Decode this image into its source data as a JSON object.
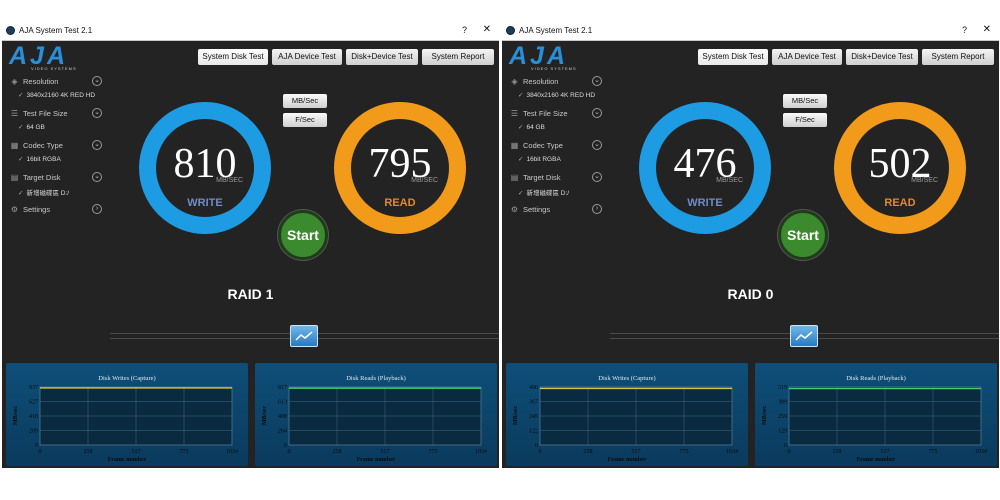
{
  "windows": [
    {
      "title": "AJA System Test 2.1",
      "help": "?",
      "close": "✕",
      "logo": {
        "text": "AJA",
        "subtitle": "VIDEO SYSTEMS"
      },
      "tabs": [
        "System Disk Test",
        "AJA Device Test",
        "Disk+Device Test",
        "System Report"
      ],
      "sidebar": [
        {
          "label": "Resolution",
          "value": "3840x2160 4K RED HD",
          "icon": "resolution-icon",
          "button": "chevron-down"
        },
        {
          "label": "Test File Size",
          "value": "64 GB",
          "icon": "file-size-icon",
          "button": "chevron-down"
        },
        {
          "label": "Codec Type",
          "value": "16bit RGBA",
          "icon": "codec-icon",
          "button": "chevron-down"
        },
        {
          "label": "Target Disk",
          "value": "新增磁碟區 D:/",
          "icon": "disk-icon",
          "button": "chevron-down"
        },
        {
          "label": "Settings",
          "value": "",
          "icon": "gear-icon",
          "button": "chevron-right"
        }
      ],
      "units": [
        "MB/Sec",
        "F/Sec"
      ],
      "write": {
        "value": "810",
        "unit": "MB/SEC",
        "label": "WRITE"
      },
      "read": {
        "value": "795",
        "unit": "MB/SEC",
        "label": "READ"
      },
      "start_label": "Start",
      "raid_label": "RAID 1",
      "charts": [
        {
          "title": "Disk Writes (Capture)",
          "xlabel": "Frame number",
          "ylabel": "MB/sec",
          "x_ticks": [
            "0",
            "258",
            "517",
            "775",
            "1034"
          ],
          "y_ticks": [
            "837",
            "627",
            "418",
            "209",
            "0"
          ],
          "ylim": [
            0,
            837
          ],
          "xlim": [
            0,
            1034
          ],
          "level": 823,
          "line_color": "#d8c44a"
        },
        {
          "title": "Disk Reads (Playback)",
          "xlabel": "Frame number",
          "ylabel": "MB/sec",
          "x_ticks": [
            "0",
            "258",
            "517",
            "775",
            "1034"
          ],
          "y_ticks": [
            "817",
            "613",
            "408",
            "204",
            "0"
          ],
          "ylim": [
            0,
            817
          ],
          "xlim": [
            0,
            1034
          ],
          "level": 800,
          "line_color": "#3fcf6a"
        }
      ]
    },
    {
      "title": "AJA System Test 2.1",
      "help": "?",
      "close": "✕",
      "logo": {
        "text": "AJA",
        "subtitle": "VIDEO SYSTEMS"
      },
      "tabs": [
        "System Disk Test",
        "AJA Device Test",
        "Disk+Device Test",
        "System Report"
      ],
      "sidebar": [
        {
          "label": "Resolution",
          "value": "3840x2160 4K RED HD",
          "icon": "resolution-icon",
          "button": "chevron-down"
        },
        {
          "label": "Test File Size",
          "value": "64 GB",
          "icon": "file-size-icon",
          "button": "chevron-down"
        },
        {
          "label": "Codec Type",
          "value": "16bit RGBA",
          "icon": "codec-icon",
          "button": "chevron-down"
        },
        {
          "label": "Target Disk",
          "value": "新增磁碟區 D:/",
          "icon": "disk-icon",
          "button": "chevron-down"
        },
        {
          "label": "Settings",
          "value": "",
          "icon": "gear-icon",
          "button": "chevron-right"
        }
      ],
      "units": [
        "MB/Sec",
        "F/Sec"
      ],
      "write": {
        "value": "476",
        "unit": "MB/SEC",
        "label": "WRITE"
      },
      "read": {
        "value": "502",
        "unit": "MB/SEC",
        "label": "READ"
      },
      "start_label": "Start",
      "raid_label": "RAID 0",
      "charts": [
        {
          "title": "Disk Writes (Capture)",
          "xlabel": "Frame number",
          "ylabel": "MB/sec",
          "x_ticks": [
            "0",
            "258",
            "517",
            "775",
            "1034"
          ],
          "y_ticks": [
            "490",
            "367",
            "245",
            "122",
            "0"
          ],
          "ylim": [
            0,
            490
          ],
          "xlim": [
            0,
            1034
          ],
          "level": 478,
          "line_color": "#d8c44a"
        },
        {
          "title": "Disk Reads (Playback)",
          "xlabel": "Frame number",
          "ylabel": "MB/sec",
          "x_ticks": [
            "0",
            "258",
            "517",
            "775",
            "1034"
          ],
          "y_ticks": [
            "519",
            "389",
            "259",
            "129",
            "0"
          ],
          "ylim": [
            0,
            519
          ],
          "xlim": [
            0,
            1034
          ],
          "level": 505,
          "line_color": "#3fcf6a"
        }
      ]
    }
  ],
  "colors": {
    "write_ring": "#1d9be3",
    "read_ring": "#f29a1a",
    "start_button": "#3b8a2e",
    "panel_bg": "#0e4f79",
    "plot_bg": "#0a2a40"
  }
}
